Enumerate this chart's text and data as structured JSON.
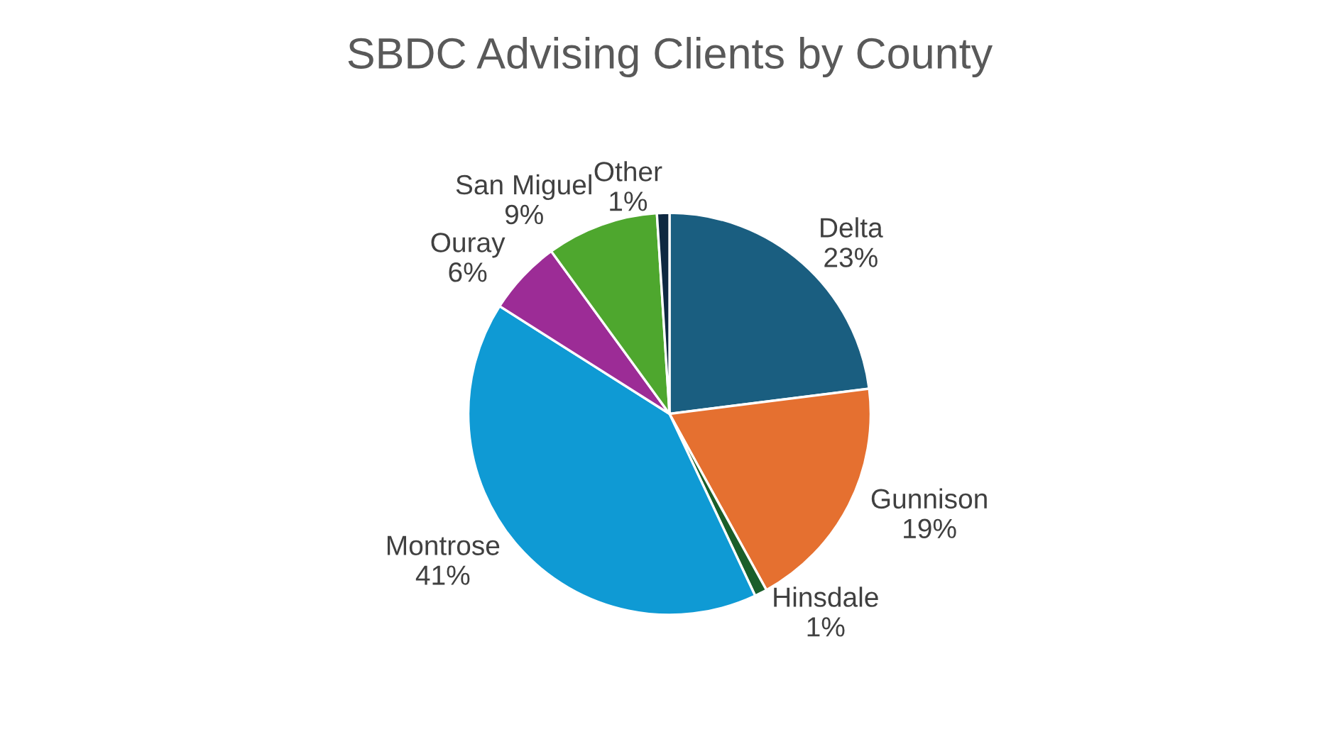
{
  "chart_data": {
    "type": "pie",
    "title": "SBDC Advising Clients by County",
    "categories": [
      "Delta",
      "Gunnison",
      "Hinsdale",
      "Montrose",
      "Ouray",
      "San Miguel",
      "Other"
    ],
    "values": [
      23,
      19,
      1,
      41,
      6,
      9,
      1
    ],
    "value_labels": [
      "23%",
      "19%",
      "1%",
      "41%",
      "6%",
      "9%",
      "1%"
    ],
    "colors": [
      "#1a5e80",
      "#e57030",
      "#1a5e2a",
      "#0f9ad4",
      "#9c2c96",
      "#4ea72e",
      "#0e2841"
    ],
    "legend": false
  }
}
